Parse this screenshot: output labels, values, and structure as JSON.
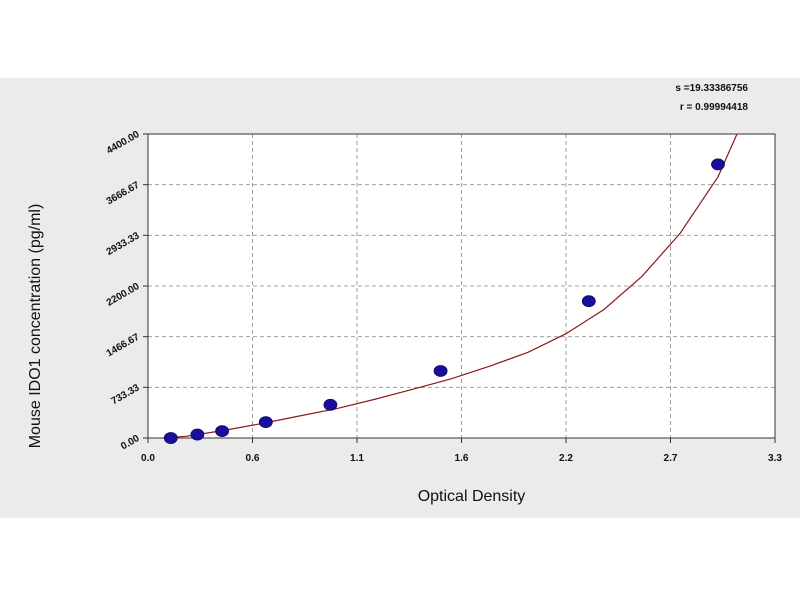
{
  "chart_data": {
    "type": "scatter",
    "title": "",
    "xlabel": "Optical Density",
    "ylabel": "Mouse IDO1 concentration (pg/ml)",
    "xlim": [
      0.0,
      3.3
    ],
    "ylim": [
      0.0,
      4400.0
    ],
    "x_ticks": [
      "0.0",
      "0.6",
      "1.1",
      "1.6",
      "2.2",
      "2.7",
      "3.3"
    ],
    "y_ticks": [
      "0.00",
      "733.33",
      "1466.67",
      "2200.00",
      "2933.33",
      "3666.67",
      "4400.00"
    ],
    "grid": true,
    "stats": {
      "s": "s =19.33386756",
      "r": "r = 0.99994418"
    },
    "series": [
      {
        "points": [
          {
            "x": 0.12,
            "y": 0
          },
          {
            "x": 0.26,
            "y": 50
          },
          {
            "x": 0.39,
            "y": 100
          },
          {
            "x": 0.62,
            "y": 230
          },
          {
            "x": 0.96,
            "y": 480
          },
          {
            "x": 1.54,
            "y": 970
          },
          {
            "x": 2.32,
            "y": 1980
          },
          {
            "x": 3.0,
            "y": 3960
          }
        ]
      }
    ],
    "fit_curve": {
      "x": [
        0.08,
        0.2,
        0.4,
        0.6,
        0.8,
        1.0,
        1.2,
        1.4,
        1.6,
        1.8,
        2.0,
        2.2,
        2.4,
        2.6,
        2.8,
        3.0,
        3.1
      ],
      "y": [
        0,
        25,
        110,
        210,
        320,
        430,
        565,
        710,
        860,
        1040,
        1240,
        1510,
        1860,
        2340,
        2960,
        3780,
        4400
      ]
    },
    "colors": {
      "marker": "#1a0f9c",
      "curve": "#8b1a1a",
      "grid": "#a0a0a0",
      "plot_bg": "#ffffff",
      "figure_bg": "#ebebeb"
    }
  }
}
